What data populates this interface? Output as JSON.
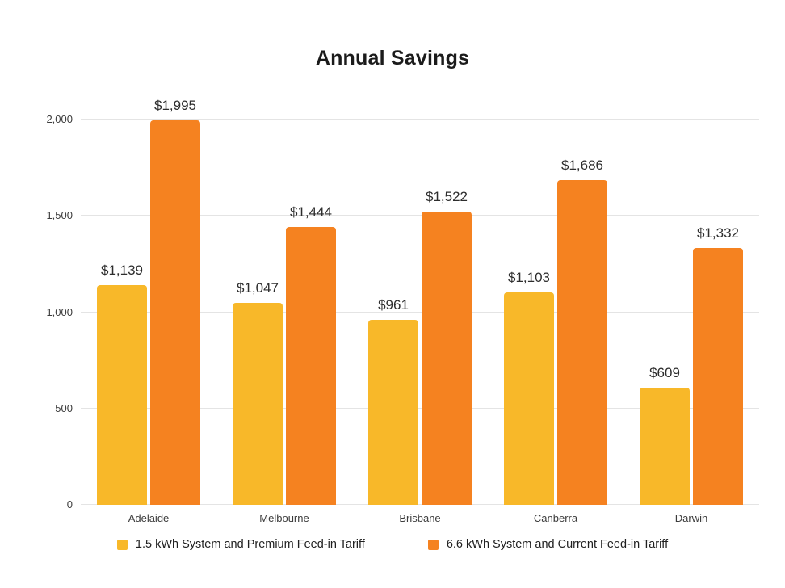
{
  "title": "Annual Savings",
  "chart_data": {
    "type": "bar",
    "title": "Annual Savings",
    "categories": [
      "Adelaide",
      "Melbourne",
      "Brisbane",
      "Canberra",
      "Darwin"
    ],
    "series": [
      {
        "name": "1.5 kWh System and Premium Feed-in Tariff",
        "color": "#F8B829",
        "values": [
          1139,
          1047,
          961,
          1103,
          609
        ],
        "labels": [
          "$1,139",
          "$1,047",
          "$961",
          "$1,103",
          "$609"
        ]
      },
      {
        "name": "6.6 kWh System and Current Feed-in Tariff",
        "color": "#F58220",
        "values": [
          1995,
          1444,
          1522,
          1686,
          1332
        ],
        "labels": [
          "$1,995",
          "$1,444",
          "$1,522",
          "$1,686",
          "$1,332"
        ]
      }
    ],
    "xlabel": "",
    "ylabel": "",
    "ylim": [
      0,
      2000
    ],
    "yticks": [
      0,
      500,
      1000,
      1500,
      2000
    ],
    "ytick_labels": [
      "0",
      "500",
      "1,000",
      "1,500",
      "2,000"
    ],
    "grid": true,
    "legend_position": "bottom"
  }
}
